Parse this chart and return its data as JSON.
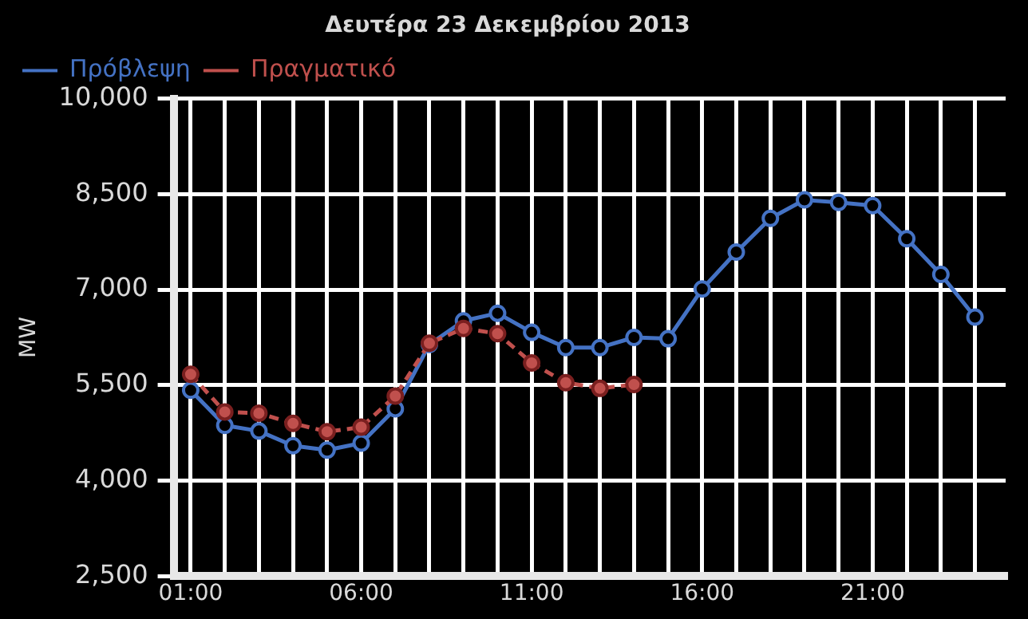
{
  "chart_data": {
    "type": "line",
    "title": "Δευτέρα 23 Δεκεμβρίου 2013",
    "ylabel": "MW",
    "x": [
      1,
      2,
      3,
      4,
      5,
      6,
      7,
      8,
      9,
      10,
      11,
      12,
      13,
      14,
      15,
      16,
      17,
      18,
      19,
      20,
      21,
      22,
      23,
      24
    ],
    "series": [
      {
        "name": "Πρόβλεψη",
        "color": "#4472c4",
        "line_style": "solid",
        "values": [
          5420,
          4870,
          4780,
          4550,
          4480,
          4590,
          5130,
          6140,
          6510,
          6630,
          6330,
          6090,
          6090,
          6250,
          6230,
          7010,
          7590,
          8120,
          8410,
          8370,
          8320,
          7800,
          7240,
          6570
        ]
      },
      {
        "name": "Πραγματικό",
        "color": "#c0504d",
        "line_style": "dashed",
        "x": [
          1,
          2,
          3,
          4,
          5,
          6,
          7,
          8,
          9,
          10,
          11,
          12,
          13,
          14
        ],
        "values": [
          5670,
          5080,
          5060,
          4900,
          4770,
          4840,
          5330,
          6160,
          6390,
          6310,
          5850,
          5540,
          5450,
          5510
        ]
      }
    ],
    "xlim": [
      0.5,
      24.9
    ],
    "xticks": [
      {
        "value": 1,
        "label": "01:00"
      },
      {
        "value": 2,
        "label": null
      },
      {
        "value": 3,
        "label": null
      },
      {
        "value": 4,
        "label": null
      },
      {
        "value": 5,
        "label": null
      },
      {
        "value": 6,
        "label": "06:00"
      },
      {
        "value": 7,
        "label": null
      },
      {
        "value": 8,
        "label": null
      },
      {
        "value": 9,
        "label": null
      },
      {
        "value": 10,
        "label": null
      },
      {
        "value": 11,
        "label": "11:00"
      },
      {
        "value": 12,
        "label": null
      },
      {
        "value": 13,
        "label": null
      },
      {
        "value": 14,
        "label": null
      },
      {
        "value": 15,
        "label": null
      },
      {
        "value": 16,
        "label": "16:00"
      },
      {
        "value": 17,
        "label": null
      },
      {
        "value": 18,
        "label": null
      },
      {
        "value": 19,
        "label": null
      },
      {
        "value": 20,
        "label": null
      },
      {
        "value": 21,
        "label": "21:00"
      },
      {
        "value": 22,
        "label": null
      },
      {
        "value": 23,
        "label": null
      },
      {
        "value": 24,
        "label": null
      }
    ],
    "ylim": [
      2500,
      10000
    ],
    "yticks": [
      {
        "value": 2500,
        "label": "2,500"
      },
      {
        "value": 4000,
        "label": "4,000"
      },
      {
        "value": 5500,
        "label": "5,500"
      },
      {
        "value": 7000,
        "label": "7,000"
      },
      {
        "value": 8500,
        "label": "8,500"
      },
      {
        "value": 10000,
        "label": "10,000"
      }
    ],
    "grid": true,
    "legend": "top left",
    "marker": "circle"
  }
}
